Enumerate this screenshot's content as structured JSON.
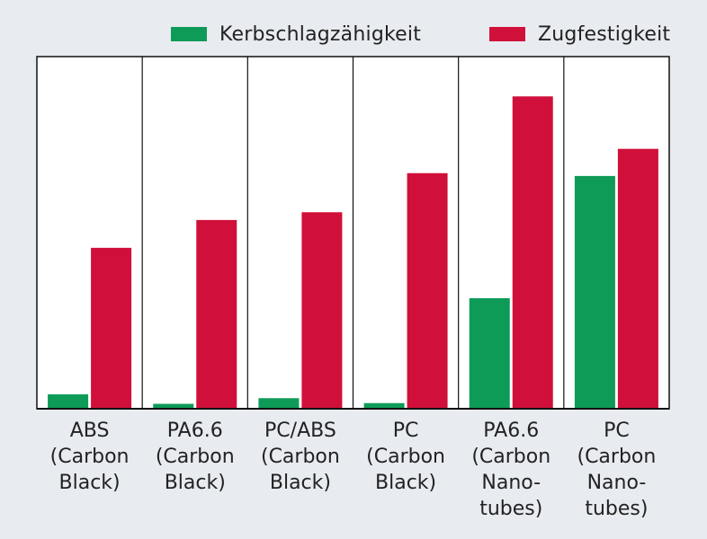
{
  "colors": {
    "kerbschlag": "#0e9b57",
    "zugfestigkeit": "#d0103a",
    "background": "#e8ebf0",
    "plot": "#ffffff"
  },
  "legend": {
    "items": [
      {
        "label": "Kerbschlagzähigkeit",
        "color": "#0e9b57"
      },
      {
        "label": "Zugfestigkeit",
        "color": "#d0103a"
      }
    ]
  },
  "chart_data": {
    "type": "bar",
    "title": "",
    "xlabel": "",
    "ylabel": "",
    "ylim": [
      0,
      100
    ],
    "categories": [
      [
        "ABS",
        "(Carbon",
        "Black)"
      ],
      [
        "PA6.6",
        "(Carbon",
        "Black)"
      ],
      [
        "PC/ABS",
        "(Carbon",
        "Black)"
      ],
      [
        "PC",
        "(Carbon",
        "Black)"
      ],
      [
        "PA6.6",
        "(Carbon",
        "Nano-",
        "tubes)"
      ],
      [
        "PC",
        "(Carbon",
        "Nano-",
        "tubes)"
      ]
    ],
    "series": [
      {
        "name": "Kerbschlagzähigkeit",
        "values": [
          4.1,
          1.4,
          3.0,
          1.6,
          31.4,
          66.1
        ]
      },
      {
        "name": "Zugfestigkeit",
        "values": [
          45.7,
          53.6,
          55.8,
          66.9,
          88.7,
          73.8
        ]
      }
    ],
    "grid": false,
    "legend_position": "top"
  }
}
